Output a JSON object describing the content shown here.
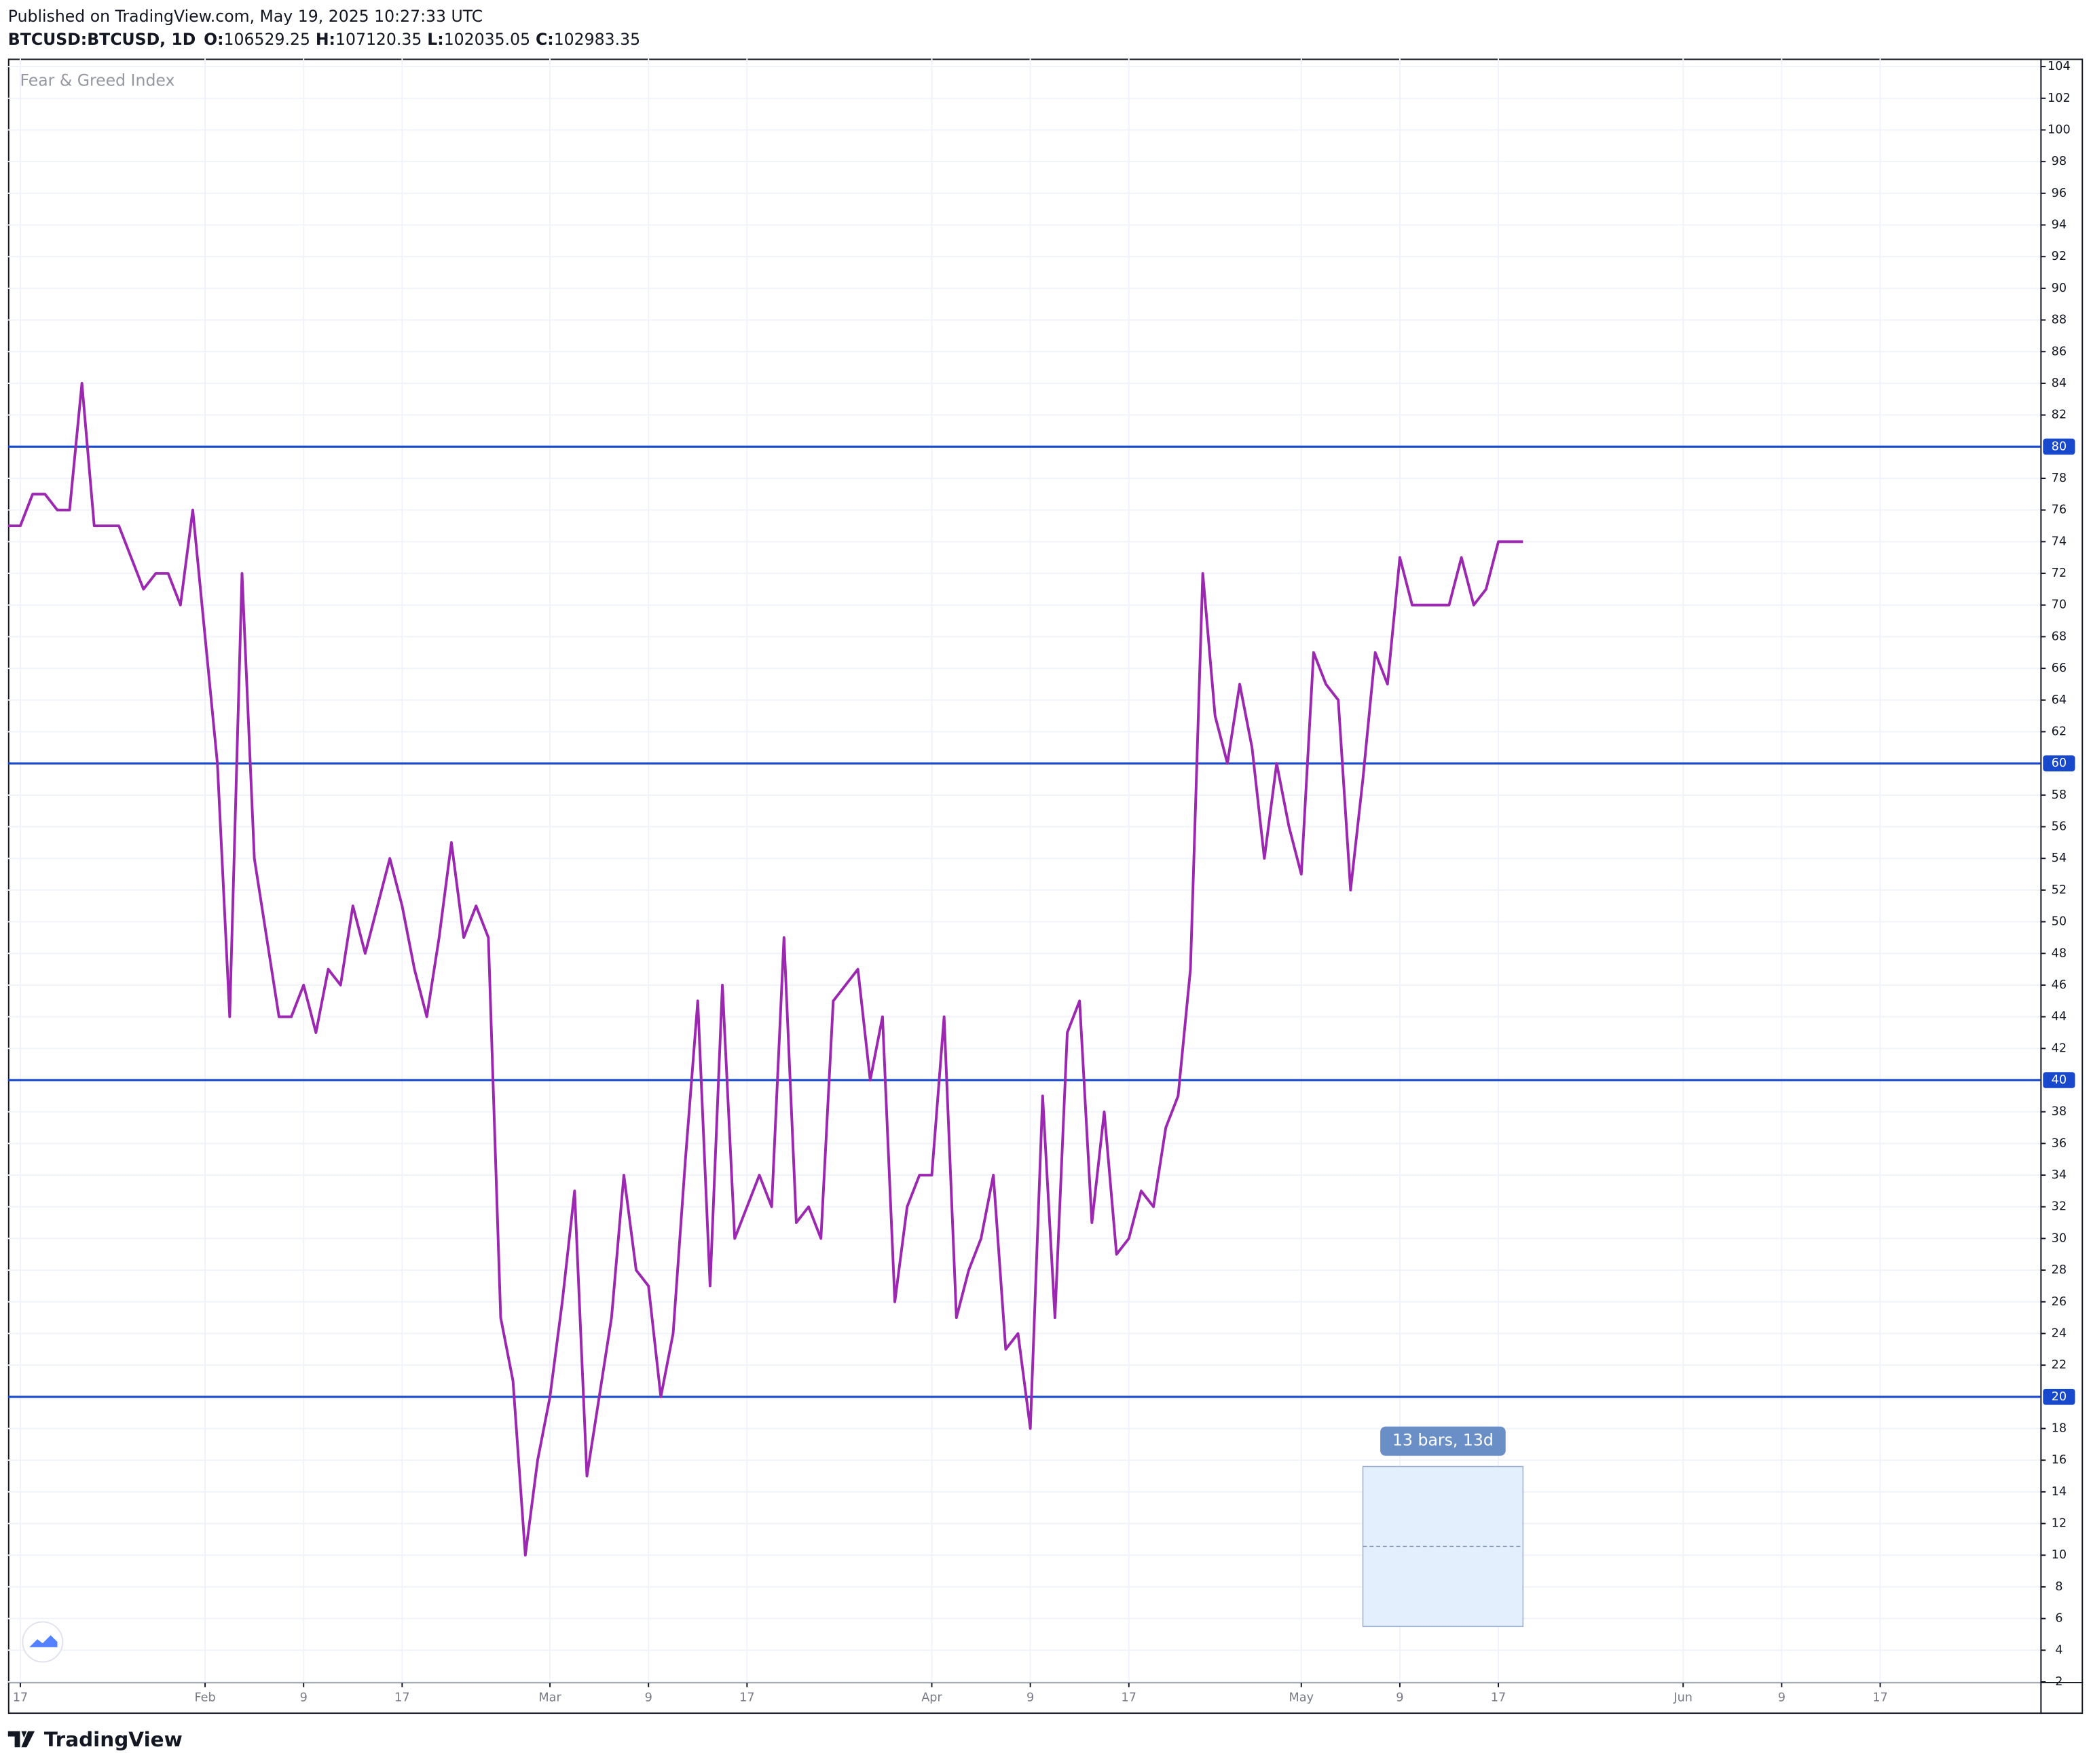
{
  "header": {
    "published": "Published on TradingView.com, May 19, 2025 10:27:33 UTC",
    "symbol": "BTCUSD:BTCUSD, 1D",
    "ohlc": [
      {
        "label": "O:",
        "value": 106529.25
      },
      {
        "label": "H:",
        "value": 107120.35
      },
      {
        "label": "L:",
        "value": 102035.05
      },
      {
        "label": "C:",
        "value": 102983.35
      }
    ]
  },
  "footer": {
    "brand": "TradingView"
  },
  "chart_data": {
    "type": "line",
    "title": "Fear & Greed Index",
    "x": [
      "2025-01-16",
      "2025-01-17",
      "2025-01-18",
      "2025-01-19",
      "2025-01-20",
      "2025-01-21",
      "2025-01-22",
      "2025-01-23",
      "2025-01-24",
      "2025-01-25",
      "2025-01-26",
      "2025-01-27",
      "2025-01-28",
      "2025-01-29",
      "2025-01-30",
      "2025-01-31",
      "2025-02-01",
      "2025-02-02",
      "2025-02-03",
      "2025-02-04",
      "2025-02-05",
      "2025-02-06",
      "2025-02-07",
      "2025-02-08",
      "2025-02-09",
      "2025-02-10",
      "2025-02-11",
      "2025-02-12",
      "2025-02-13",
      "2025-02-14",
      "2025-02-15",
      "2025-02-16",
      "2025-02-17",
      "2025-02-18",
      "2025-02-19",
      "2025-02-20",
      "2025-02-21",
      "2025-02-22",
      "2025-02-23",
      "2025-02-24",
      "2025-02-25",
      "2025-02-26",
      "2025-02-27",
      "2025-02-28",
      "2025-03-01",
      "2025-03-02",
      "2025-03-03",
      "2025-03-04",
      "2025-03-05",
      "2025-03-06",
      "2025-03-07",
      "2025-03-08",
      "2025-03-09",
      "2025-03-10",
      "2025-03-11",
      "2025-03-12",
      "2025-03-13",
      "2025-03-14",
      "2025-03-15",
      "2025-03-16",
      "2025-03-17",
      "2025-03-18",
      "2025-03-19",
      "2025-03-20",
      "2025-03-21",
      "2025-03-22",
      "2025-03-23",
      "2025-03-24",
      "2025-03-25",
      "2025-03-26",
      "2025-03-27",
      "2025-03-28",
      "2025-03-29",
      "2025-03-30",
      "2025-03-31",
      "2025-04-01",
      "2025-04-02",
      "2025-04-03",
      "2025-04-04",
      "2025-04-05",
      "2025-04-06",
      "2025-04-07",
      "2025-04-08",
      "2025-04-09",
      "2025-04-10",
      "2025-04-11",
      "2025-04-12",
      "2025-04-13",
      "2025-04-14",
      "2025-04-15",
      "2025-04-16",
      "2025-04-17",
      "2025-04-18",
      "2025-04-19",
      "2025-04-20",
      "2025-04-21",
      "2025-04-22",
      "2025-04-23",
      "2025-04-24",
      "2025-04-25",
      "2025-04-26",
      "2025-04-27",
      "2025-04-28",
      "2025-04-29",
      "2025-04-30",
      "2025-05-01",
      "2025-05-02",
      "2025-05-03",
      "2025-05-04",
      "2025-05-05",
      "2025-05-06",
      "2025-05-07",
      "2025-05-08",
      "2025-05-09",
      "2025-05-10",
      "2025-05-11",
      "2025-05-12",
      "2025-05-13",
      "2025-05-14",
      "2025-05-15",
      "2025-05-16",
      "2025-05-17",
      "2025-05-18",
      "2025-05-19"
    ],
    "series": [
      {
        "color": "#9c27b0",
        "values": [
          75,
          75,
          77,
          77,
          76,
          76,
          84,
          75,
          75,
          75,
          73,
          71,
          72,
          72,
          70,
          76,
          68,
          60,
          44,
          72,
          54,
          49,
          44,
          44,
          46,
          43,
          47,
          46,
          51,
          48,
          51,
          54,
          51,
          47,
          44,
          49,
          55,
          49,
          51,
          49,
          25,
          21,
          10,
          16,
          20,
          26,
          33,
          15,
          20,
          25,
          34,
          28,
          27,
          20,
          24,
          35,
          45,
          27,
          46,
          30,
          32,
          34,
          32,
          49,
          31,
          32,
          30,
          45,
          46,
          47,
          40,
          44,
          26,
          32,
          34,
          34,
          44,
          25,
          28,
          30,
          34,
          23,
          24,
          18,
          39,
          25,
          43,
          45,
          31,
          38,
          29,
          30,
          33,
          32,
          37,
          39,
          47,
          72,
          63,
          60,
          65,
          61,
          54,
          60,
          56,
          53,
          67,
          65,
          64,
          52,
          59,
          67,
          65,
          73,
          70,
          70,
          70,
          70,
          73,
          70,
          71,
          74,
          74,
          74
        ]
      }
    ],
    "xlim": [
      "2025-01-16",
      "2025-06-30"
    ],
    "xticks": [
      {
        "value": "2025-01-17",
        "label": "17"
      },
      {
        "value": "2025-02-01",
        "label": "Feb"
      },
      {
        "value": "2025-02-09",
        "label": "9"
      },
      {
        "value": "2025-02-17",
        "label": "17"
      },
      {
        "value": "2025-03-01",
        "label": "Mar"
      },
      {
        "value": "2025-03-09",
        "label": "9"
      },
      {
        "value": "2025-03-17",
        "label": "17"
      },
      {
        "value": "2025-04-01",
        "label": "Apr"
      },
      {
        "value": "2025-04-09",
        "label": "9"
      },
      {
        "value": "2025-04-17",
        "label": "17"
      },
      {
        "value": "2025-05-01",
        "label": "May"
      },
      {
        "value": "2025-05-09",
        "label": "9"
      },
      {
        "value": "2025-05-17",
        "label": "17"
      },
      {
        "value": "2025-06-01",
        "label": "Jun"
      },
      {
        "value": "2025-06-09",
        "label": "9"
      },
      {
        "value": "2025-06-17",
        "label": "17"
      }
    ],
    "ylim": [
      2,
      104.5
    ],
    "yticks": [
      2,
      4,
      6,
      8,
      10,
      12,
      14,
      16,
      18,
      22,
      24,
      26,
      28,
      30,
      32,
      34,
      36,
      38,
      42,
      44,
      46,
      48,
      50,
      52,
      54,
      56,
      58,
      62,
      64,
      66,
      68,
      70,
      72,
      74,
      76,
      78,
      82,
      84,
      86,
      88,
      90,
      92,
      94,
      96,
      98,
      100,
      102,
      104
    ],
    "hlines": {
      "color": "#1848cc",
      "values": [
        20,
        40,
        60,
        80
      ]
    },
    "grid": true,
    "measure": {
      "label": "13 bars, 13d",
      "x": [
        "2025-05-06",
        "2025-05-19"
      ],
      "y": [
        5.5,
        15.6
      ]
    }
  }
}
